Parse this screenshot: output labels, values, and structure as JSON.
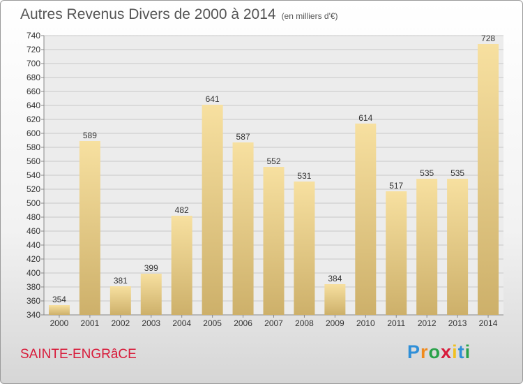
{
  "title": "Autres Revenus Divers de 2000 à 2014",
  "unit": "(en milliers d'€)",
  "commune": "SAINTE-ENGRâCE",
  "logo": "Proxiti",
  "colors": {
    "bar_light": "#f7e0a0",
    "bar_dark": "#cdb06a",
    "grid": "#c8c8c8",
    "commune": "#d81b3a",
    "text": "#555555"
  },
  "chart_data": {
    "type": "bar",
    "title": "Autres Revenus Divers de 2000 à 2014",
    "categories": [
      "2000",
      "2001",
      "2002",
      "2003",
      "2004",
      "2005",
      "2006",
      "2007",
      "2008",
      "2009",
      "2010",
      "2011",
      "2012",
      "2013",
      "2014"
    ],
    "values": [
      354,
      589,
      381,
      399,
      482,
      641,
      587,
      552,
      531,
      384,
      614,
      517,
      535,
      535,
      728
    ],
    "ylim": [
      340,
      740
    ],
    "ytick_step": 20,
    "grid": true,
    "xlabel": "",
    "ylabel": ""
  }
}
